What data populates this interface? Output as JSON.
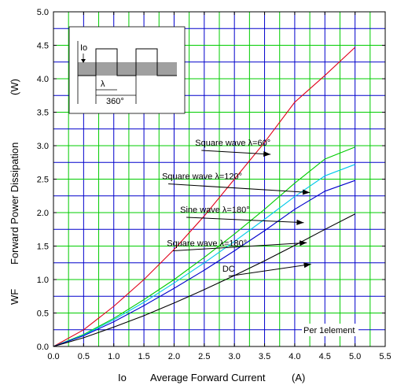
{
  "chart_data": {
    "type": "line",
    "title": "",
    "xlabel_symbol": "Io",
    "xlabel": "Average Forward Current",
    "xlabel_unit": "(A)",
    "ylabel_symbol": "WF",
    "ylabel": "Forward Power Dissipation",
    "ylabel_unit": "(W)",
    "xlim": [
      0,
      5.5
    ],
    "ylim": [
      0,
      5.0
    ],
    "x_ticks": [
      "0.0",
      "0.5",
      "1.0",
      "1.5",
      "2.0",
      "2.5",
      "3.0",
      "3.5",
      "4.0",
      "4.5",
      "5.0",
      "5.5"
    ],
    "y_ticks": [
      "0.0",
      "0.5",
      "1.0",
      "1.5",
      "2.0",
      "2.5",
      "3.0",
      "3.5",
      "4.0",
      "4.5",
      "5.0"
    ],
    "grid": true,
    "colors": {
      "grid_vertical_major": "#0000cc",
      "grid_vertical_minor": "#00cc00",
      "grid_horizontal_major": "#00cc00",
      "grid_horizontal_minor": "#0000cc",
      "inset_band": "#a0a0a0"
    },
    "series": [
      {
        "name": "Square wave λ=60°",
        "color": "#e0001a",
        "x": [
          0,
          0.5,
          1.0,
          1.5,
          2.0,
          2.5,
          3.0,
          3.5,
          4.0,
          4.5,
          5.0
        ],
        "y": [
          0,
          0.25,
          0.6,
          1.0,
          1.45,
          1.95,
          2.5,
          3.05,
          3.65,
          4.05,
          4.47
        ]
      },
      {
        "name": "Square wave λ=120°",
        "color": "#00cc00",
        "x": [
          0,
          0.5,
          1.0,
          1.5,
          2.0,
          2.5,
          3.0,
          3.5,
          4.0,
          4.5,
          5.0
        ],
        "y": [
          0,
          0.18,
          0.42,
          0.7,
          1.0,
          1.33,
          1.68,
          2.05,
          2.44,
          2.8,
          2.98
        ]
      },
      {
        "name": "Sine wave λ=180°",
        "color": "#00c8e8",
        "x": [
          0,
          0.5,
          1.0,
          1.5,
          2.0,
          2.5,
          3.0,
          3.5,
          4.0,
          4.5,
          5.0
        ],
        "y": [
          0,
          0.17,
          0.4,
          0.66,
          0.95,
          1.25,
          1.57,
          1.9,
          2.24,
          2.55,
          2.72
        ]
      },
      {
        "name": "Square wave λ=180°",
        "color": "#0000cc",
        "x": [
          0,
          0.5,
          1.0,
          1.5,
          2.0,
          2.5,
          3.0,
          3.5,
          4.0,
          4.5,
          5.0
        ],
        "y": [
          0,
          0.16,
          0.37,
          0.61,
          0.87,
          1.14,
          1.43,
          1.73,
          2.05,
          2.32,
          2.48
        ]
      },
      {
        "name": "DC",
        "color": "#000000",
        "x": [
          0,
          0.5,
          1.0,
          1.5,
          2.0,
          2.5,
          3.0,
          3.5,
          4.0,
          4.5,
          5.0
        ],
        "y": [
          0,
          0.13,
          0.29,
          0.46,
          0.65,
          0.85,
          1.06,
          1.28,
          1.51,
          1.75,
          1.98
        ]
      }
    ],
    "annotations": [
      {
        "label": "Square wave λ=60°",
        "series": 0,
        "text_at": [
          2.35,
          3.0
        ],
        "arrow_to": [
          3.6,
          2.87
        ]
      },
      {
        "label": "Square wave λ=120°",
        "series": 1,
        "text_at": [
          1.8,
          2.5
        ],
        "arrow_to": [
          4.25,
          2.3
        ]
      },
      {
        "label": "Sine wave λ=180°",
        "series": 2,
        "text_at": [
          2.1,
          2.0
        ],
        "arrow_to": [
          4.15,
          1.85
        ]
      },
      {
        "label": "Square wave λ=180°",
        "series": 3,
        "text_at": [
          1.88,
          1.5
        ],
        "arrow_to": [
          4.2,
          1.55
        ]
      },
      {
        "label": "DC",
        "series": 4,
        "text_at": [
          2.8,
          1.12
        ],
        "arrow_to": [
          4.27,
          1.23
        ]
      }
    ],
    "note": "Per 1element",
    "inset": {
      "io_label": "Io",
      "lambda_label": "λ",
      "period_label": "360°"
    }
  }
}
